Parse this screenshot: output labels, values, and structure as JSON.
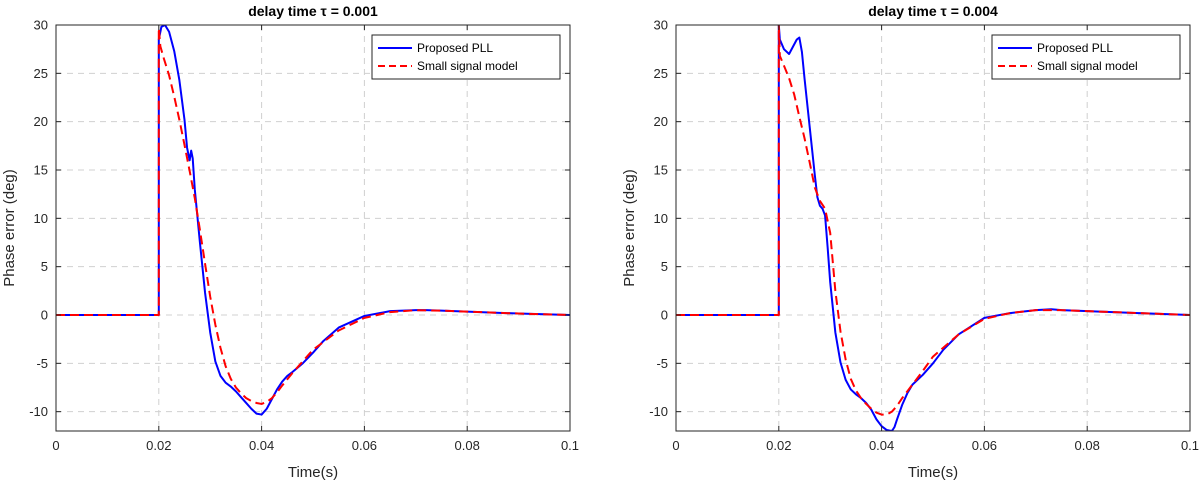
{
  "chart_data": [
    {
      "type": "line",
      "title": "delay time τ = 0.001",
      "xlabel": "Time(s)",
      "ylabel": "Phase error (deg)",
      "xlim": [
        0,
        0.1
      ],
      "ylim": [
        -12,
        30
      ],
      "xticks": [
        0,
        0.02,
        0.04,
        0.06,
        0.08,
        0.1
      ],
      "xtick_labels": [
        "0",
        "0.02",
        "0.04",
        "0.06",
        "0.08",
        "0.1"
      ],
      "yticks": [
        -10,
        -5,
        0,
        5,
        10,
        15,
        20,
        25,
        30
      ],
      "ytick_labels": [
        "-10",
        "-5",
        "0",
        "5",
        "10",
        "15",
        "20",
        "25",
        "30"
      ],
      "grid": true,
      "legend_position": "top-right",
      "series": [
        {
          "name": "Proposed PLL",
          "color": "#0000ff",
          "style": "solid",
          "x": [
            0,
            0.02,
            0.02,
            0.0205,
            0.0212,
            0.022,
            0.023,
            0.024,
            0.025,
            0.0255,
            0.026,
            0.0263,
            0.0266,
            0.027,
            0.028,
            0.029,
            0.03,
            0.031,
            0.032,
            0.033,
            0.034,
            0.035,
            0.036,
            0.037,
            0.038,
            0.039,
            0.04,
            0.041,
            0.042,
            0.043,
            0.044,
            0.045,
            0.046,
            0.048,
            0.05,
            0.052,
            0.055,
            0.06,
            0.065,
            0.07,
            0.072,
            0.075,
            0.08,
            0.09,
            0.1
          ],
          "y": [
            0,
            0,
            28.5,
            29.8,
            30.0,
            29.3,
            27.3,
            24.3,
            20.2,
            17.3,
            16.0,
            17.0,
            16.2,
            13.0,
            7.5,
            2.3,
            -1.8,
            -4.8,
            -6.3,
            -7.0,
            -7.4,
            -7.9,
            -8.5,
            -9.1,
            -9.7,
            -10.2,
            -10.3,
            -9.7,
            -8.7,
            -7.7,
            -6.9,
            -6.3,
            -5.9,
            -5.0,
            -3.9,
            -2.7,
            -1.3,
            -0.1,
            0.4,
            0.5,
            0.5,
            0.45,
            0.35,
            0.15,
            0.0
          ]
        },
        {
          "name": "Small signal model",
          "color": "#ff0000",
          "style": "dashed",
          "x": [
            0,
            0.02,
            0.02,
            0.0203,
            0.021,
            0.022,
            0.023,
            0.024,
            0.025,
            0.026,
            0.027,
            0.028,
            0.029,
            0.03,
            0.031,
            0.032,
            0.033,
            0.034,
            0.035,
            0.036,
            0.037,
            0.038,
            0.039,
            0.04,
            0.041,
            0.042,
            0.043,
            0.044,
            0.046,
            0.048,
            0.05,
            0.055,
            0.06,
            0.065,
            0.07,
            0.075,
            0.08,
            0.09,
            0.1
          ],
          "y": [
            0,
            0,
            29.7,
            27.8,
            26.5,
            24.8,
            22.6,
            20.2,
            17.6,
            14.9,
            12.1,
            8.8,
            5.3,
            1.9,
            -1.0,
            -3.4,
            -5.3,
            -6.6,
            -7.5,
            -8.1,
            -8.6,
            -8.9,
            -9.1,
            -9.2,
            -9.0,
            -8.6,
            -8.0,
            -7.3,
            -6.0,
            -4.8,
            -3.6,
            -1.6,
            -0.3,
            0.3,
            0.5,
            0.45,
            0.35,
            0.15,
            0.0
          ]
        }
      ]
    },
    {
      "type": "line",
      "title": "delay time τ = 0.004",
      "xlabel": "Time(s)",
      "ylabel": "Phase error (deg)",
      "xlim": [
        0,
        0.1
      ],
      "ylim": [
        -12,
        30
      ],
      "xticks": [
        0,
        0.02,
        0.04,
        0.06,
        0.08,
        0.1
      ],
      "xtick_labels": [
        "0",
        "0.02",
        "0.04",
        "0.06",
        "0.08",
        "0.1"
      ],
      "yticks": [
        -10,
        -5,
        0,
        5,
        10,
        15,
        20,
        25,
        30
      ],
      "ytick_labels": [
        "-10",
        "-5",
        "0",
        "5",
        "10",
        "15",
        "20",
        "25",
        "30"
      ],
      "grid": true,
      "legend_position": "top-right",
      "series": [
        {
          "name": "Proposed PLL",
          "color": "#0000ff",
          "style": "solid",
          "x": [
            0,
            0.02,
            0.02,
            0.0202,
            0.021,
            0.022,
            0.0228,
            0.0235,
            0.024,
            0.0245,
            0.025,
            0.026,
            0.027,
            0.0275,
            0.028,
            0.0285,
            0.029,
            0.0295,
            0.03,
            0.031,
            0.032,
            0.033,
            0.034,
            0.035,
            0.036,
            0.037,
            0.038,
            0.039,
            0.04,
            0.041,
            0.042,
            0.0425,
            0.043,
            0.044,
            0.045,
            0.046,
            0.048,
            0.05,
            0.052,
            0.055,
            0.06,
            0.065,
            0.07,
            0.073,
            0.075,
            0.08,
            0.09,
            0.1
          ],
          "y": [
            0,
            0,
            30.0,
            28.5,
            27.5,
            27.0,
            27.8,
            28.5,
            28.7,
            27.2,
            24.5,
            19.5,
            14.5,
            12.2,
            11.3,
            11.0,
            10.3,
            7.0,
            3.4,
            -1.8,
            -4.9,
            -6.7,
            -7.7,
            -8.2,
            -8.6,
            -9.1,
            -9.8,
            -10.8,
            -11.5,
            -11.9,
            -12.0,
            -11.6,
            -10.8,
            -9.3,
            -8.1,
            -7.2,
            -6.2,
            -5.0,
            -3.6,
            -2.0,
            -0.3,
            0.2,
            0.5,
            0.6,
            0.5,
            0.4,
            0.2,
            0.0
          ]
        },
        {
          "name": "Small signal model",
          "color": "#ff0000",
          "style": "dashed",
          "x": [
            0,
            0.02,
            0.02,
            0.0202,
            0.021,
            0.022,
            0.023,
            0.024,
            0.025,
            0.026,
            0.027,
            0.028,
            0.029,
            0.03,
            0.031,
            0.032,
            0.033,
            0.034,
            0.035,
            0.036,
            0.037,
            0.038,
            0.039,
            0.04,
            0.041,
            0.042,
            0.043,
            0.044,
            0.046,
            0.048,
            0.05,
            0.055,
            0.06,
            0.065,
            0.07,
            0.075,
            0.08,
            0.09,
            0.1
          ],
          "y": [
            0,
            0,
            30.0,
            26.8,
            25.8,
            24.5,
            22.8,
            20.5,
            18.3,
            15.8,
            13.2,
            11.8,
            11.0,
            8.5,
            2.5,
            -1.7,
            -4.6,
            -6.6,
            -7.8,
            -8.6,
            -9.2,
            -9.7,
            -10.1,
            -10.3,
            -10.3,
            -10.0,
            -9.4,
            -8.6,
            -7.2,
            -5.8,
            -4.3,
            -2.0,
            -0.4,
            0.2,
            0.5,
            0.5,
            0.4,
            0.2,
            0.0
          ]
        }
      ]
    }
  ]
}
